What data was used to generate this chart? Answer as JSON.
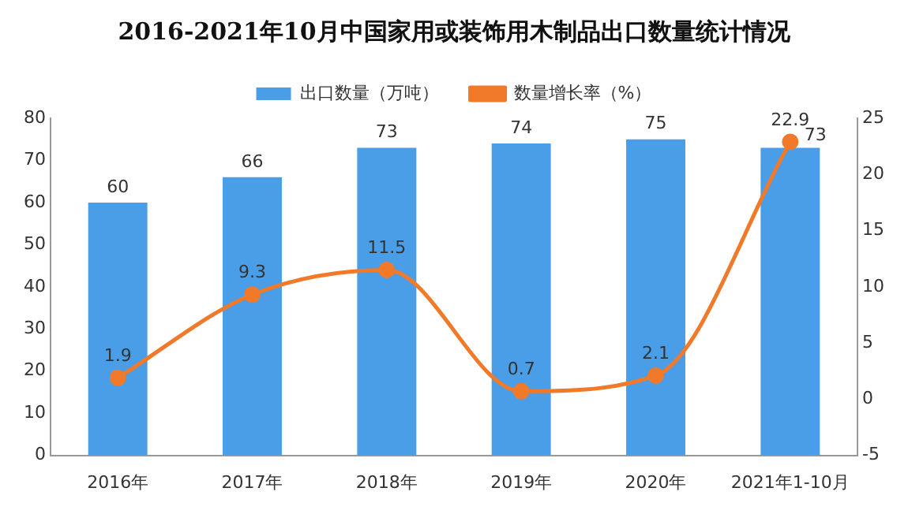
{
  "chart_data": {
    "type": "bar",
    "title": "2016-2021年10月中国家用或装饰用木制品出口数量统计情况",
    "categories": [
      "2016年",
      "2017年",
      "2018年",
      "2019年",
      "2020年",
      "2021年1-10月"
    ],
    "series": [
      {
        "name": "出口数量（万吨）",
        "color": "#4a9ee8",
        "values": [
          60,
          66,
          73,
          74,
          75,
          73
        ]
      },
      {
        "name": "数量增长率（%）",
        "type": "line",
        "axis": "y2",
        "color": "#f07a2a",
        "marker": "circle",
        "values": [
          1.9,
          9.3,
          11.5,
          0.7,
          2.1,
          22.9
        ]
      }
    ],
    "ylim": [
      0,
      80
    ],
    "yticks": [
      0,
      10,
      20,
      30,
      40,
      50,
      60,
      70,
      80
    ],
    "y2lim": [
      -5,
      25
    ],
    "y2ticks": [
      -5,
      0,
      5,
      10,
      15,
      20,
      25
    ],
    "data_labels": true,
    "legend": "top",
    "grid": false
  }
}
